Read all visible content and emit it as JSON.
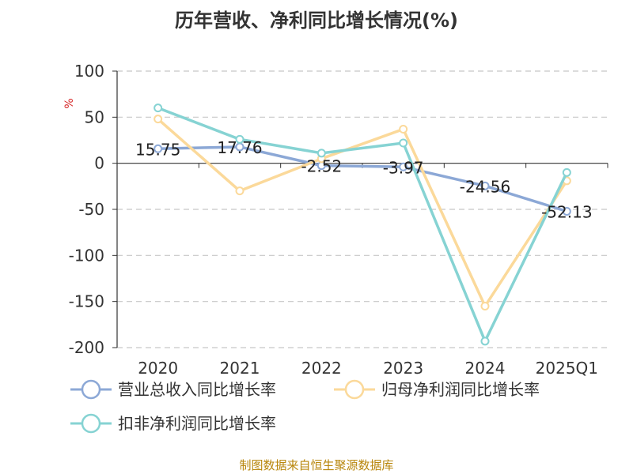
{
  "chart_data": {
    "type": "line",
    "title": "历年营收、净利同比增长情况(%)",
    "ylabel": "%",
    "categories": [
      "2020",
      "2021",
      "2022",
      "2023",
      "2024",
      "2025Q1"
    ],
    "ylim": [
      -200,
      100
    ],
    "yticks": [
      100,
      50,
      0,
      -50,
      -100,
      -150,
      -200
    ],
    "grid": true,
    "legend_position": "bottom",
    "series": [
      {
        "name": "营业总收入同比增长率",
        "color": "#8ca8d6",
        "values": [
          15.75,
          17.76,
          -2.52,
          -3.97,
          -24.56,
          -52.13
        ],
        "labels": [
          "15.75",
          "17.76",
          "-2.52",
          "-3.97",
          "-24.56",
          "-52.13"
        ]
      },
      {
        "name": "归母净利润同比增长率",
        "color": "#fbd99a",
        "values": [
          48,
          -30,
          5,
          37,
          -155,
          -19
        ]
      },
      {
        "name": "扣非净利润同比增长率",
        "color": "#86d3d3",
        "values": [
          60,
          26,
          11,
          22,
          -193,
          -10
        ]
      }
    ]
  },
  "source": "制图数据来自恒生聚源数据库"
}
